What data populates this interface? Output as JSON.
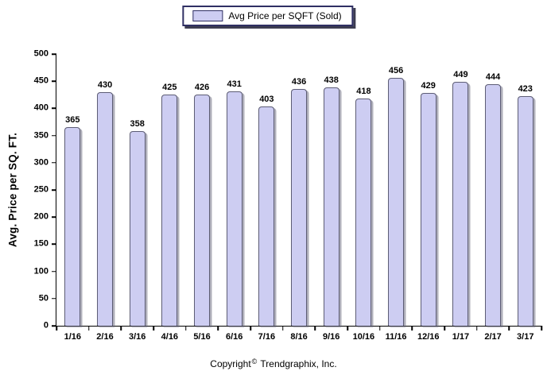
{
  "legend": {
    "label": "Avg Price per SQFT (Sold)"
  },
  "footer": {
    "prefix": "Copyright",
    "symbol": "©",
    "suffix": "Trendgraphix, Inc."
  },
  "colors": {
    "bar_fill": "#cdcdf2",
    "bar_border": "#5d5d75",
    "legend_border": "#2f2f63",
    "axis": "#000000",
    "text": "#000000"
  },
  "chart_data": {
    "type": "bar",
    "title": "",
    "series_name": "Avg Price per SQFT (Sold)",
    "categories": [
      "1/16",
      "2/16",
      "3/16",
      "4/16",
      "5/16",
      "6/16",
      "7/16",
      "8/16",
      "9/16",
      "10/16",
      "11/16",
      "12/16",
      "1/17",
      "2/17",
      "3/17"
    ],
    "values": [
      365,
      430,
      358,
      425,
      426,
      431,
      403,
      436,
      438,
      418,
      456,
      429,
      449,
      444,
      423
    ],
    "xlabel": "",
    "ylabel": "Avg. Price per SQ. FT.",
    "ylim": [
      0,
      500
    ],
    "ytick_step": 50,
    "yticks": [
      0,
      50,
      100,
      150,
      200,
      250,
      300,
      350,
      400,
      450,
      500
    ],
    "grid": false,
    "legend_position": "top-center",
    "value_labels": "above-bars"
  }
}
